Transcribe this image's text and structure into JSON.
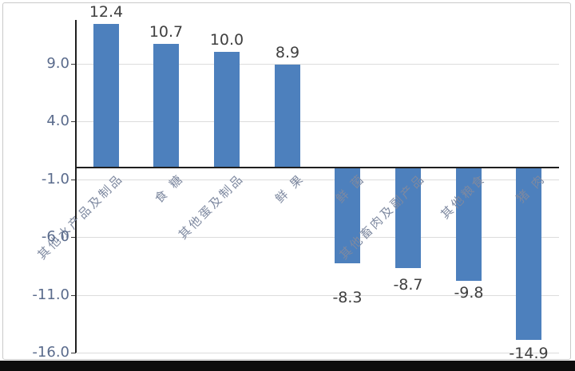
{
  "colors": {
    "bar": "#4d80bd",
    "value_label": "#3f3f3f",
    "axis_label": "#5a6b8c",
    "category_label": "#7e89a0",
    "gridline": "#dcdcdc",
    "axis_line": "#1f1f1f",
    "frame_border": "#c9c9c9",
    "bottom_strip": "#0c0c0c"
  },
  "chart_data": {
    "type": "bar",
    "title": "",
    "xlabel": "",
    "ylabel": "",
    "categories": [
      "其他水产品及制品",
      "食 糖",
      "其他蛋及制品",
      "鲜 果",
      "鲜 菌",
      "其他畜肉及副产品",
      "其他粮食",
      "猪 肉"
    ],
    "values": [
      12.4,
      10.7,
      10.0,
      8.9,
      -8.3,
      -8.7,
      -9.8,
      -14.9
    ],
    "value_labels": [
      "12.4",
      "10.7",
      "10.0",
      "8.9",
      "-8.3",
      "-8.7",
      "-9.8",
      "-14.9"
    ],
    "y_ticks": [
      9.0,
      4.0,
      -1.0,
      -6.0,
      -11.0,
      -16.0
    ],
    "y_tick_labels": [
      "9.0",
      "4.0",
      "-1.0",
      "-6.0",
      "-11.0",
      "-16.0"
    ],
    "ylim": [
      -16.0,
      12.8
    ],
    "grid": true,
    "legend": false,
    "bar_color": "#4d80bd",
    "neg_label_gaps": [
      32,
      10,
      4,
      6
    ],
    "pos_label_gap": 26
  }
}
